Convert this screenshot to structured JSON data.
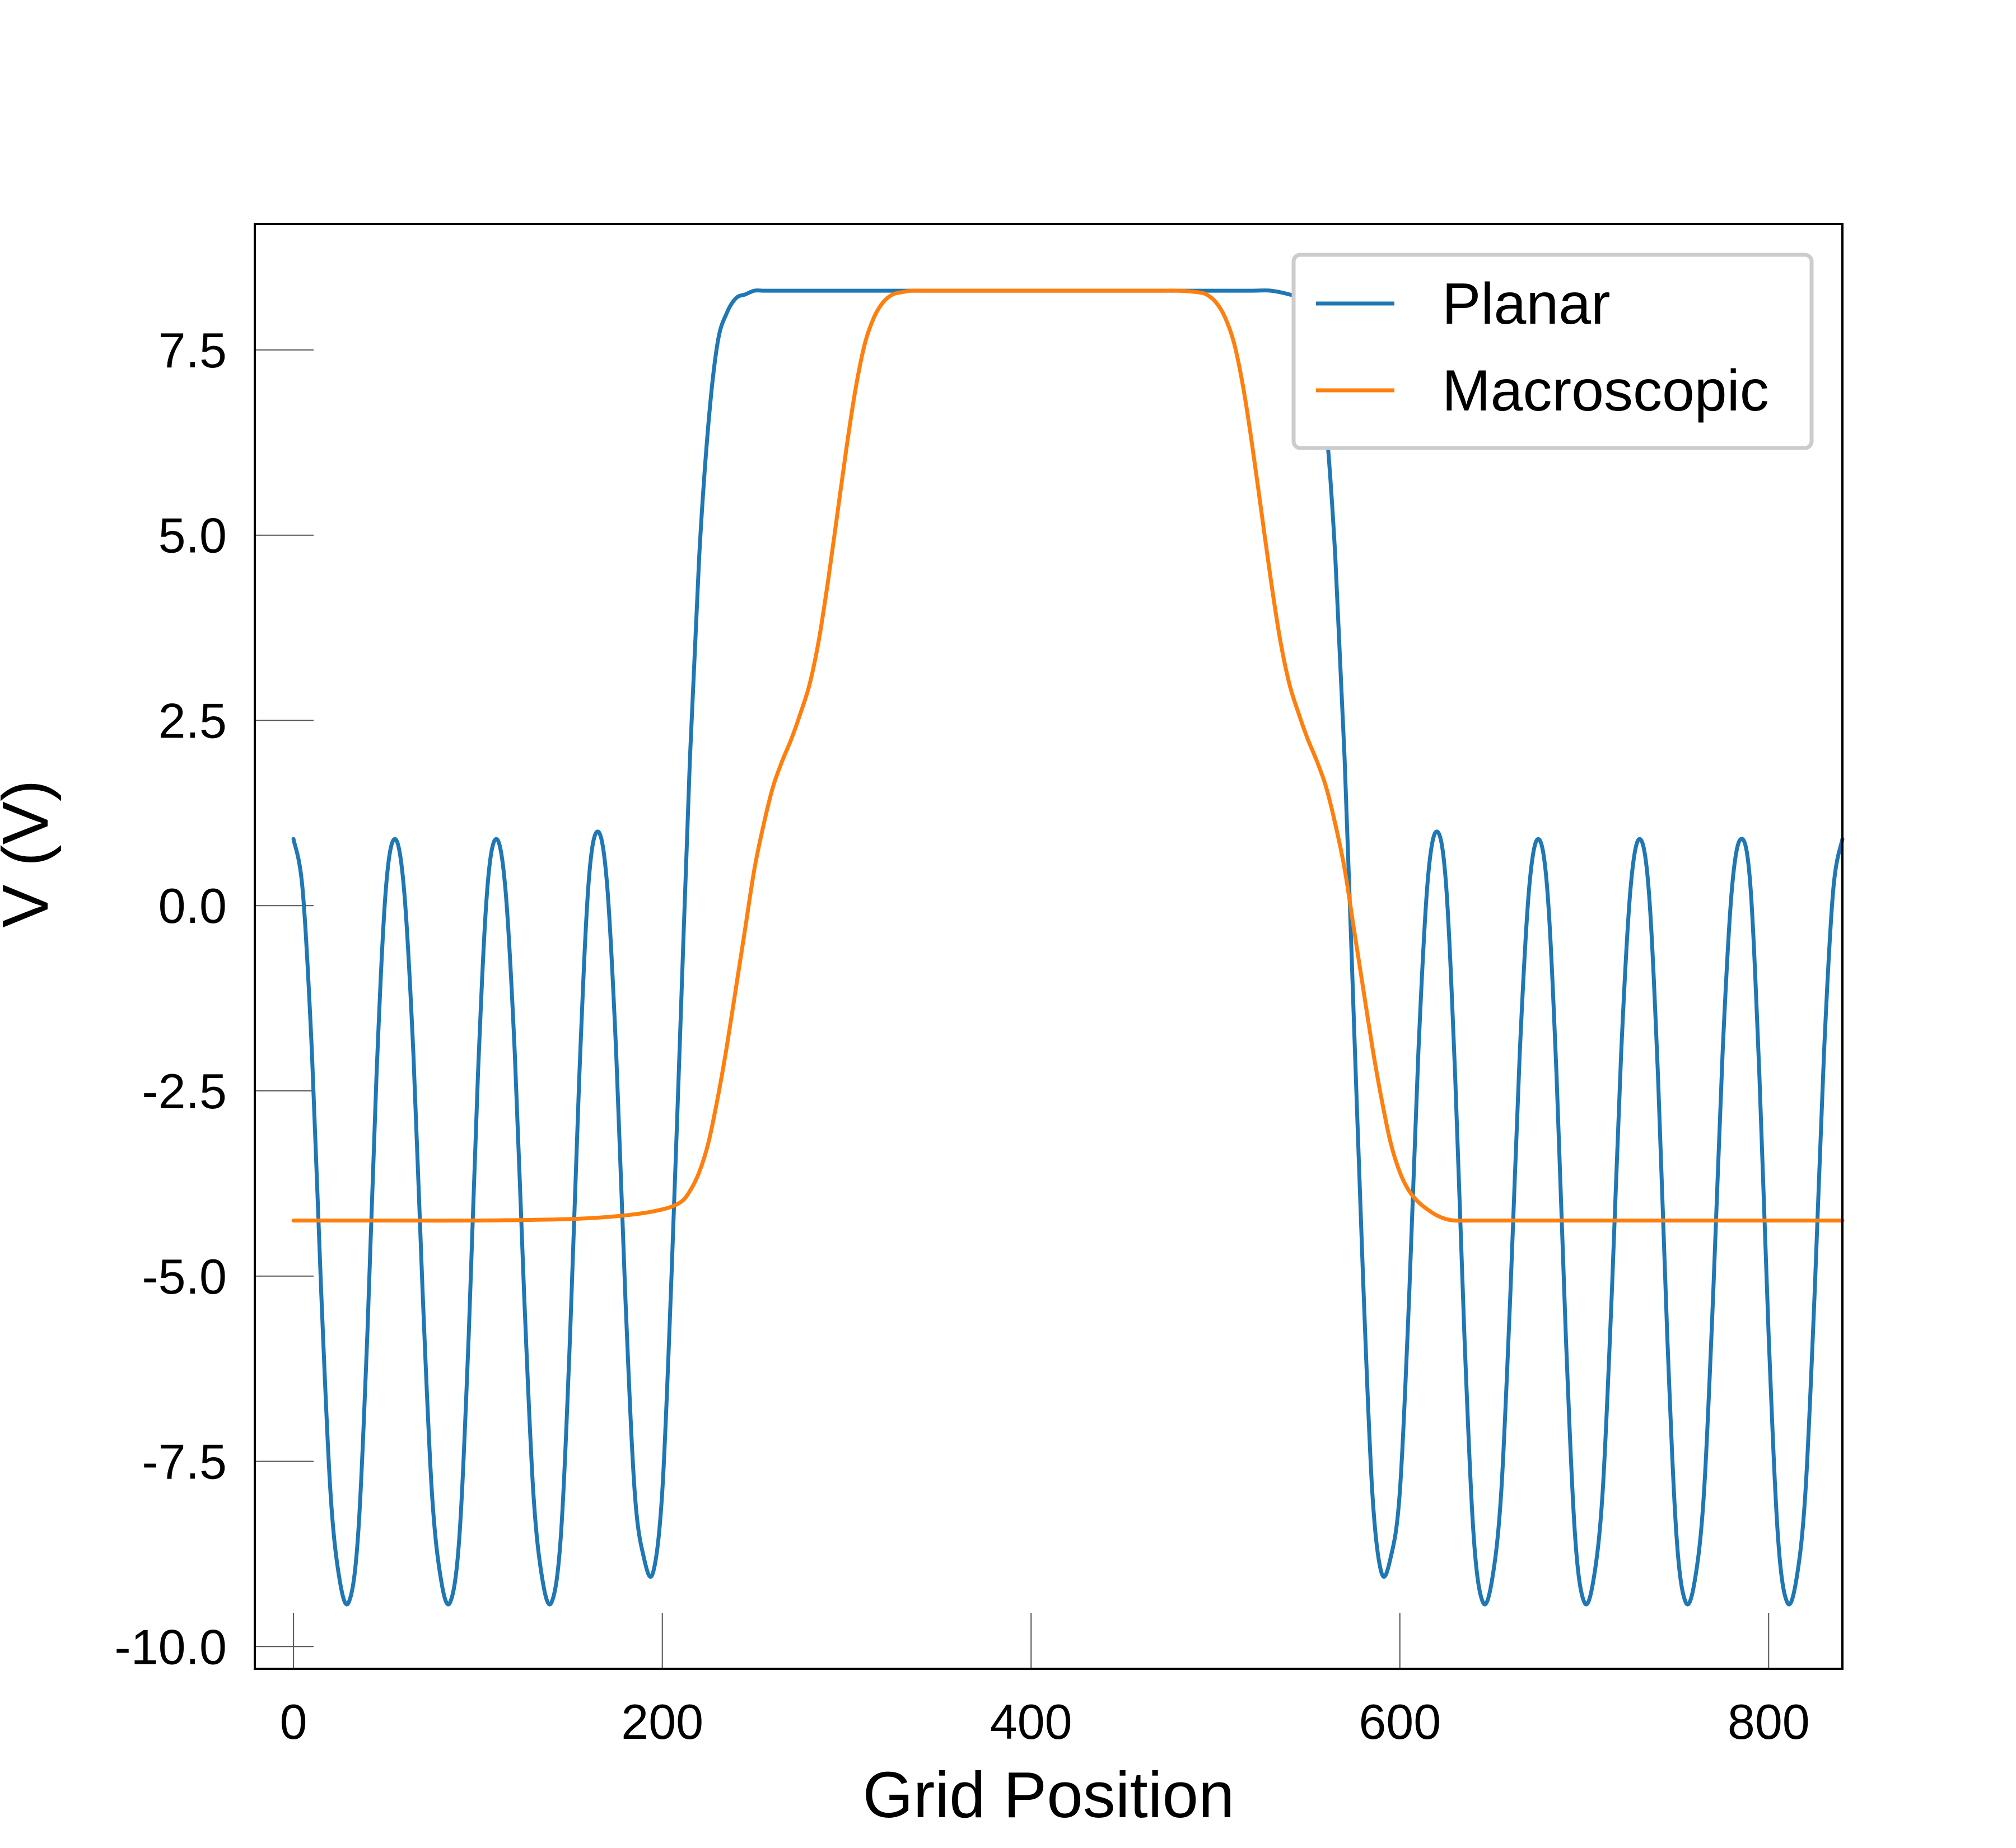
{
  "chart_data": {
    "type": "line",
    "xlabel": "Grid Position",
    "ylabel": "V (V)",
    "xlim": [
      -21,
      840
    ],
    "ylim": [
      -10.3,
      9.2
    ],
    "xticks": [
      0,
      200,
      400,
      600,
      800
    ],
    "xtick_labels": [
      "0",
      "200",
      "400",
      "600",
      "800"
    ],
    "yticks": [
      -10.0,
      -7.5,
      -5.0,
      -2.5,
      0.0,
      2.5,
      5.0,
      7.5
    ],
    "ytick_labels": [
      "-10.0",
      "-7.5",
      "-5.0",
      "-2.5",
      "0.0",
      "2.5",
      "5.0",
      "7.5"
    ],
    "grid": false,
    "legend_position": "top-right",
    "series": [
      {
        "name": "Planar",
        "color": "#1f77b4",
        "x": [
          0,
          5,
          10,
          15,
          20,
          25,
          30,
          35,
          40,
          45,
          50,
          55,
          60,
          65,
          70,
          75,
          80,
          85,
          90,
          95,
          100,
          105,
          110,
          115,
          120,
          125,
          130,
          135,
          140,
          145,
          150,
          155,
          160,
          165,
          170,
          175,
          180,
          185,
          190,
          195,
          200,
          205,
          210,
          215,
          220,
          225,
          230,
          235,
          240,
          245,
          250,
          255,
          260,
          265,
          270,
          275,
          280,
          285,
          290,
          295,
          300,
          310,
          320,
          330,
          340,
          350,
          360,
          380,
          400,
          420,
          440,
          460,
          480,
          500,
          520,
          530,
          540,
          545,
          550,
          555,
          560,
          565,
          570,
          575,
          580,
          585,
          590,
          595,
          600,
          605,
          610,
          615,
          620,
          625,
          630,
          635,
          640,
          645,
          650,
          655,
          660,
          665,
          670,
          675,
          680,
          685,
          690,
          695,
          700,
          705,
          710,
          715,
          720,
          725,
          730,
          735,
          740,
          745,
          750,
          755,
          760,
          765,
          770,
          775,
          780,
          785,
          790,
          795,
          800,
          805,
          810,
          815,
          820,
          825,
          830,
          835,
          840
        ],
        "y": [
          0.9,
          0.2,
          -2.0,
          -5.2,
          -7.9,
          -9.1,
          -9.4,
          -8.5,
          -5.8,
          -2.3,
          0.2,
          0.9,
          0.2,
          -2.0,
          -5.2,
          -7.9,
          -9.1,
          -9.4,
          -8.5,
          -5.8,
          -2.3,
          0.2,
          0.9,
          0.2,
          -2.0,
          -5.2,
          -7.9,
          -9.1,
          -9.4,
          -8.5,
          -5.8,
          -2.3,
          0.3,
          1.0,
          0.3,
          -2.0,
          -5.3,
          -7.9,
          -8.8,
          -9.0,
          -7.9,
          -5.0,
          -1.5,
          2.0,
          4.7,
          6.5,
          7.6,
          8.0,
          8.2,
          8.25,
          8.3,
          8.3,
          8.3,
          8.3,
          8.3,
          8.3,
          8.3,
          8.3,
          8.3,
          8.3,
          8.3,
          8.3,
          8.3,
          8.3,
          8.3,
          8.3,
          8.3,
          8.3,
          8.3,
          8.3,
          8.3,
          8.3,
          8.3,
          8.3,
          8.3,
          8.3,
          8.25,
          8.2,
          8.0,
          7.6,
          6.5,
          4.7,
          2.0,
          -1.5,
          -5.0,
          -7.9,
          -9.0,
          -8.8,
          -7.9,
          -5.3,
          -2.0,
          0.3,
          1.0,
          0.3,
          -2.3,
          -5.8,
          -8.5,
          -9.4,
          -9.1,
          -7.9,
          -5.2,
          -2.0,
          0.2,
          0.9,
          0.2,
          -2.3,
          -5.8,
          -8.5,
          -9.4,
          -9.1,
          -7.9,
          -5.2,
          -2.0,
          0.2,
          0.9,
          0.2,
          -2.3,
          -5.8,
          -8.5,
          -9.4,
          -9.1,
          -7.9,
          -5.2,
          -2.0,
          0.2,
          0.9,
          0.3,
          -2.3,
          -5.8,
          -8.5,
          -9.4,
          -9.1,
          -7.9,
          -5.2,
          -2.0,
          0.2,
          0.9
        ]
      },
      {
        "name": "Macroscopic",
        "color": "#ff7f0e",
        "x": [
          0,
          50,
          100,
          150,
          180,
          200,
          210,
          215,
          220,
          225,
          230,
          235,
          240,
          245,
          250,
          255,
          260,
          265,
          270,
          275,
          280,
          285,
          290,
          295,
          300,
          305,
          310,
          315,
          320,
          325,
          330,
          335,
          340,
          345,
          350,
          360,
          370,
          380,
          400,
          420,
          440,
          460,
          470,
          480,
          490,
          495,
          500,
          505,
          510,
          515,
          520,
          525,
          530,
          535,
          540,
          545,
          550,
          555,
          560,
          565,
          570,
          575,
          580,
          585,
          590,
          595,
          600,
          605,
          610,
          615,
          620,
          625,
          630,
          640,
          660,
          690,
          740,
          790,
          840
        ],
        "y": [
          -4.25,
          -4.25,
          -4.25,
          -4.23,
          -4.18,
          -4.1,
          -4.0,
          -3.85,
          -3.6,
          -3.2,
          -2.6,
          -1.9,
          -1.1,
          -0.3,
          0.5,
          1.1,
          1.6,
          1.95,
          2.25,
          2.6,
          3.0,
          3.6,
          4.4,
          5.3,
          6.2,
          7.0,
          7.6,
          7.95,
          8.15,
          8.25,
          8.28,
          8.3,
          8.3,
          8.3,
          8.3,
          8.3,
          8.3,
          8.3,
          8.3,
          8.3,
          8.3,
          8.3,
          8.3,
          8.3,
          8.28,
          8.25,
          8.15,
          7.95,
          7.6,
          7.0,
          6.2,
          5.3,
          4.4,
          3.6,
          3.0,
          2.6,
          2.25,
          1.95,
          1.6,
          1.1,
          0.5,
          -0.3,
          -1.1,
          -1.9,
          -2.6,
          -3.2,
          -3.6,
          -3.85,
          -4.0,
          -4.1,
          -4.18,
          -4.23,
          -4.25,
          -4.25,
          -4.25,
          -4.25,
          -4.25,
          -4.25,
          -4.25
        ]
      }
    ]
  }
}
